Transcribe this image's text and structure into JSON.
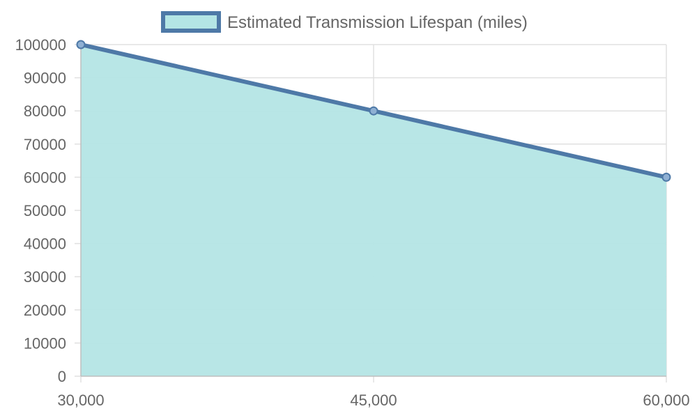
{
  "chart_data": {
    "type": "area",
    "categories": [
      "30,000",
      "45,000",
      "60,000"
    ],
    "series": [
      {
        "name": "Estimated Transmission Lifespan (miles)",
        "values": [
          100000,
          80000,
          60000
        ]
      }
    ],
    "ylim": [
      0,
      100000
    ],
    "yticks": [
      0,
      10000,
      20000,
      30000,
      40000,
      50000,
      60000,
      70000,
      80000,
      90000,
      100000
    ],
    "grid": true,
    "legend_position": "top",
    "colors": {
      "line": "#4e79a7",
      "fill": "#b4e5e5",
      "point_fill": "#8fb0d3",
      "grid": "#e0e0e0",
      "axis": "#bdbdbd",
      "text": "#666666"
    }
  }
}
